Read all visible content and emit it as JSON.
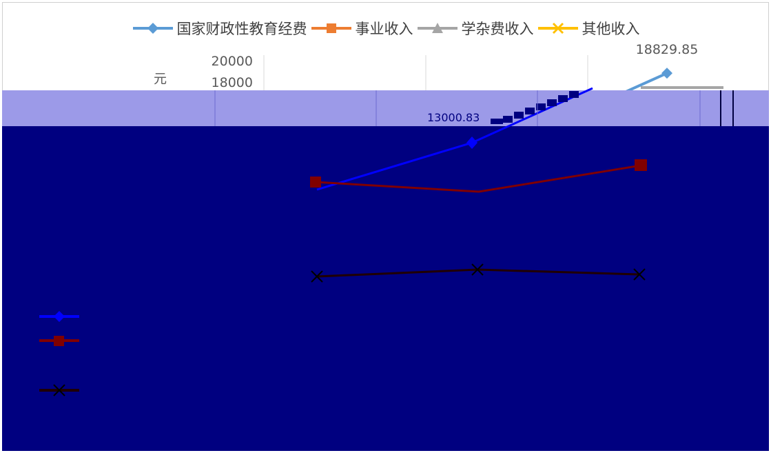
{
  "chart_data": {
    "type": "line",
    "title": "",
    "ylabel": "元",
    "xlabel": "",
    "ylim": [
      0,
      20000
    ],
    "yticks": [
      20000,
      18000
    ],
    "legend_position": "top",
    "grid": true,
    "series": [
      {
        "name": "国家财政性教育经费",
        "color": "#5b9bd5",
        "marker": "diamond",
        "values": [
          null,
          null,
          18829.85
        ],
        "labels": [
          "",
          "",
          "18829.85"
        ]
      },
      {
        "name": "事业收入",
        "color": "#ed7d31",
        "marker": "square",
        "values": [
          null,
          null,
          null
        ]
      },
      {
        "name": "学杂费收入",
        "color": "#a5a5a5",
        "marker": "triangle",
        "values": [
          null,
          null,
          null
        ]
      },
      {
        "name": "其他收入",
        "color": "#ffc000",
        "marker": "x",
        "values": [
          null,
          null,
          null
        ]
      }
    ]
  },
  "overlay": {
    "label_fragment": "13000.83"
  }
}
